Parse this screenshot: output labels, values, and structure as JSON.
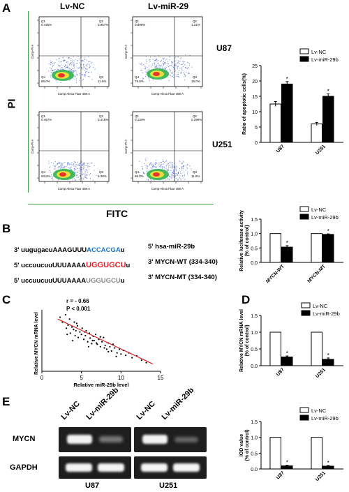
{
  "panels": {
    "A": "A",
    "B": "B",
    "C": "C",
    "D": "D",
    "E": "E"
  },
  "panelA": {
    "col_headers": [
      "Lv-NC",
      "Lv-miR-29"
    ],
    "row_labels": [
      "U87",
      "U251"
    ],
    "y_axis": "PI",
    "x_axis": "FITC",
    "flow_xlabel": "Comp-Alexa Fluor 488-A",
    "flow_ylabel": "Comp-PI-A",
    "quad": {
      "u87_nc": [
        "0.446%",
        "0.957%",
        "11.5%",
        "85.0%"
      ],
      "u87_mir": [
        "0.899%",
        "1.21%",
        "18.0%",
        "79.8%"
      ],
      "u251_nc": [
        "0.467%",
        "0.416%",
        "5.30%",
        "93.8%"
      ],
      "u251_mir": [
        "0.118%",
        "0.296%",
        "11.5%",
        "88.0%"
      ]
    },
    "quad_names": [
      "Q1",
      "Q2",
      "Q3",
      "Q4"
    ]
  },
  "panelB": {
    "rows": [
      {
        "parts": [
          {
            "t": "3' uugugacuAAAGUUU",
            "c": "black"
          },
          {
            "t": "ACCACGA",
            "c": "blue"
          },
          {
            "t": "u",
            "c": "black"
          }
        ],
        "label": "5' hsa-miR-29b"
      },
      {
        "parts": [
          {
            "t": "5' uccuucuuUUUAAAA",
            "c": "black"
          },
          {
            "t": "UGGUGCU",
            "c": "red"
          },
          {
            "t": "u",
            "c": "black"
          }
        ],
        "label": "3' MYCN-WT (334-340)"
      },
      {
        "parts": [
          {
            "t": "5' uccuucuuUUUAAAA",
            "c": "black"
          },
          {
            "t": "UGGUGCU",
            "c": "gray"
          },
          {
            "t": "u",
            "c": "black"
          }
        ],
        "label": "3' MYCN-MT (334-340)"
      }
    ]
  },
  "panelC": {
    "stats": [
      "r = - 0.66",
      "P < 0.001"
    ]
  },
  "panelE": {
    "lanes": [
      "Lv-NC",
      "Lv-miR-29b",
      "Lv-NC",
      "Lv-miR-29b"
    ],
    "rows": [
      "MYCN",
      "GAPDH"
    ],
    "cells": [
      "U87",
      "U251"
    ]
  },
  "chart_data": [
    {
      "type": "bar",
      "categories": [
        "U87",
        "U251"
      ],
      "series": [
        {
          "name": "Lv-NC",
          "values": [
            12.5,
            6
          ]
        },
        {
          "name": "Lv-miR-29b",
          "values": [
            19,
            15
          ]
        }
      ],
      "errors": [
        [
          0.8,
          0.5
        ],
        [
          0.8,
          0.8
        ]
      ],
      "ylabel": "Ratio of apoptotic cells(%)",
      "ylim": [
        0,
        25
      ],
      "yticks": [
        0,
        5,
        10,
        15,
        20,
        25
      ],
      "colors": [
        "#ffffff",
        "#000000"
      ],
      "legend": "top-right"
    },
    {
      "type": "bar",
      "categories": [
        "MYCN-WT",
        "MYCN-MT"
      ],
      "series": [
        {
          "name": "Lv-NC",
          "values": [
            1.0,
            1.0
          ]
        },
        {
          "name": "Lv-miR-29b",
          "values": [
            0.53,
            0.97
          ]
        }
      ],
      "errors": [
        [
          0,
          0
        ],
        [
          0.05,
          0.02
        ]
      ],
      "ylabel": "Relative luciferase activity (% of control)",
      "ylim": [
        0,
        1.5
      ],
      "yticks": [
        0.0,
        0.5,
        1.0,
        1.5
      ],
      "colors": [
        "#ffffff",
        "#000000"
      ],
      "legend": "top-right"
    },
    {
      "type": "scatter",
      "xlabel": "Relative miR-29b level",
      "ylabel": "Relative MYCN mRNA level",
      "xlim": [
        0,
        15
      ],
      "xticks": [
        0,
        5,
        10,
        15
      ],
      "fit": {
        "x": [
          2,
          14
        ],
        "y": [
          0.85,
          0.12
        ]
      },
      "x": [
        2.3,
        2.6,
        3.0,
        3.1,
        3.3,
        3.5,
        3.6,
        3.8,
        4.0,
        4.1,
        4.2,
        4.3,
        4.5,
        4.6,
        4.8,
        5.0,
        5.1,
        5.3,
        5.5,
        5.6,
        5.8,
        6.0,
        6.1,
        6.3,
        6.5,
        6.6,
        6.8,
        7.0,
        7.2,
        7.4,
        7.6,
        7.8,
        8.0,
        8.2,
        8.4,
        8.6,
        8.8,
        9.0,
        9.2,
        9.5,
        9.8,
        10.0,
        10.3,
        10.6,
        11.0,
        11.4,
        12.0,
        12.6,
        13.2,
        4.4,
        5.4,
        6.4,
        7.4,
        8.4,
        3.2,
        3.9,
        5.9,
        6.9,
        7.9,
        9.4
      ],
      "y": [
        0.88,
        0.8,
        0.92,
        0.7,
        0.75,
        0.85,
        0.62,
        0.72,
        0.68,
        0.8,
        0.58,
        0.66,
        0.74,
        0.55,
        0.64,
        0.6,
        0.7,
        0.52,
        0.58,
        0.66,
        0.48,
        0.62,
        0.54,
        0.45,
        0.57,
        0.5,
        0.6,
        0.44,
        0.52,
        0.4,
        0.48,
        0.55,
        0.42,
        0.36,
        0.46,
        0.4,
        0.33,
        0.44,
        0.38,
        0.3,
        0.36,
        0.28,
        0.34,
        0.26,
        0.3,
        0.22,
        0.25,
        0.18,
        0.14,
        0.78,
        0.64,
        0.5,
        0.56,
        0.32,
        0.6,
        0.5,
        0.4,
        0.46,
        0.38,
        0.24
      ]
    },
    {
      "type": "bar",
      "categories": [
        "U87",
        "U251"
      ],
      "series": [
        {
          "name": "Lv-NC",
          "values": [
            1.0,
            1.0
          ]
        },
        {
          "name": "Lv-miR-29b",
          "values": [
            0.26,
            0.19
          ]
        }
      ],
      "errors": [
        [
          0,
          0
        ],
        [
          0.03,
          0.04
        ]
      ],
      "ylabel": "Relative MYCN mRNA level (% of control)",
      "ylim": [
        0,
        1.5
      ],
      "yticks": [
        0.0,
        0.5,
        1.0,
        1.5
      ],
      "colors": [
        "#ffffff",
        "#000000"
      ],
      "legend": "top-right"
    },
    {
      "type": "bar",
      "categories": [
        "U87",
        "U251"
      ],
      "series": [
        {
          "name": "Lv-NC",
          "values": [
            1.0,
            1.0
          ]
        },
        {
          "name": "Lv-miR-29b",
          "values": [
            0.1,
            0.09
          ]
        }
      ],
      "errors": [
        [
          0,
          0
        ],
        [
          0.02,
          0.02
        ]
      ],
      "ylabel": "IOD value (% of control)",
      "ylim": [
        0,
        1.5
      ],
      "yticks": [
        0.0,
        0.5,
        1.0,
        1.5
      ],
      "colors": [
        "#ffffff",
        "#000000"
      ],
      "legend": "top-right"
    }
  ]
}
